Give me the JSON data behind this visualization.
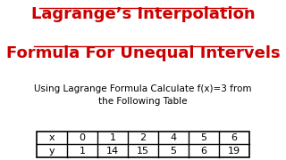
{
  "title_line1": "Lagrange’s Interpolation",
  "title_line2": "Formula For Unequal Intervels",
  "subtitle": "Using Lagrange Formula Calculate f(x)=3 from\nthe Following Table",
  "title_color": "#cc0000",
  "subtitle_color": "#000000",
  "background_color": "#ffffff",
  "table_x_label": "x",
  "table_y_label": "y",
  "x_values": [
    "0",
    "1",
    "2",
    "4",
    "5",
    "6"
  ],
  "y_values": [
    "1",
    "14",
    "15",
    "5",
    "6",
    "19"
  ],
  "title_fontsize": 13,
  "subtitle_fontsize": 7.5,
  "table_fontsize": 8
}
